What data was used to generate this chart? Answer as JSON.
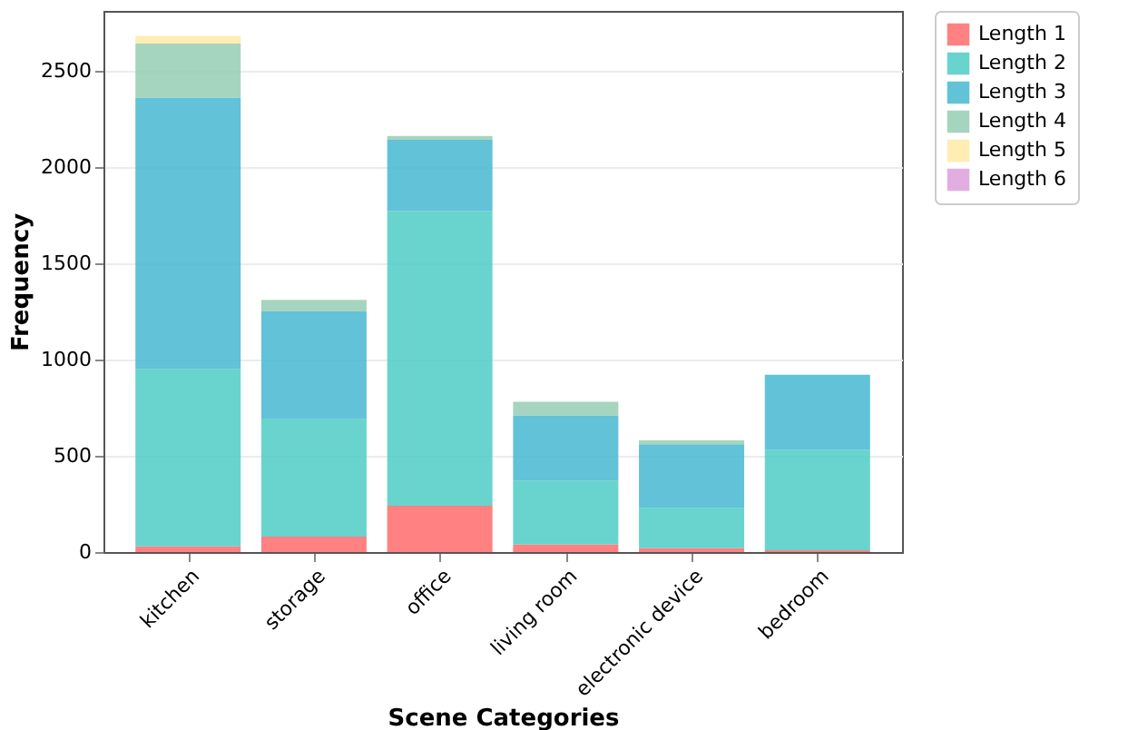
{
  "chart_data": {
    "type": "bar",
    "stacked": true,
    "xlabel": "Scene Categories",
    "ylabel": "Frequency",
    "categories": [
      "kitchen",
      "storage",
      "office",
      "living room",
      "electronic device",
      "bedroom"
    ],
    "series": [
      {
        "name": "Length 1",
        "color": "#ff6b6b",
        "values": [
          30,
          80,
          240,
          40,
          20,
          10
        ]
      },
      {
        "name": "Length 2",
        "color": "#4ecdc4",
        "values": [
          920,
          610,
          1530,
          330,
          210,
          520
        ]
      },
      {
        "name": "Length 3",
        "color": "#45b7d1",
        "values": [
          1410,
          560,
          370,
          340,
          330,
          390
        ]
      },
      {
        "name": "Length 4",
        "color": "#96ceb4",
        "values": [
          280,
          60,
          20,
          70,
          20,
          0
        ]
      },
      {
        "name": "Length 5",
        "color": "#ffeaa7",
        "values": [
          40,
          0,
          0,
          0,
          0,
          0
        ]
      },
      {
        "name": "Length 6",
        "color": "#dda0dd",
        "values": [
          0,
          0,
          0,
          0,
          0,
          0
        ]
      }
    ],
    "ylim": [
      0,
      2810
    ],
    "yticks": [
      0,
      500,
      1000,
      1500,
      2000,
      2500
    ],
    "grid": "y",
    "legend": "top right"
  }
}
